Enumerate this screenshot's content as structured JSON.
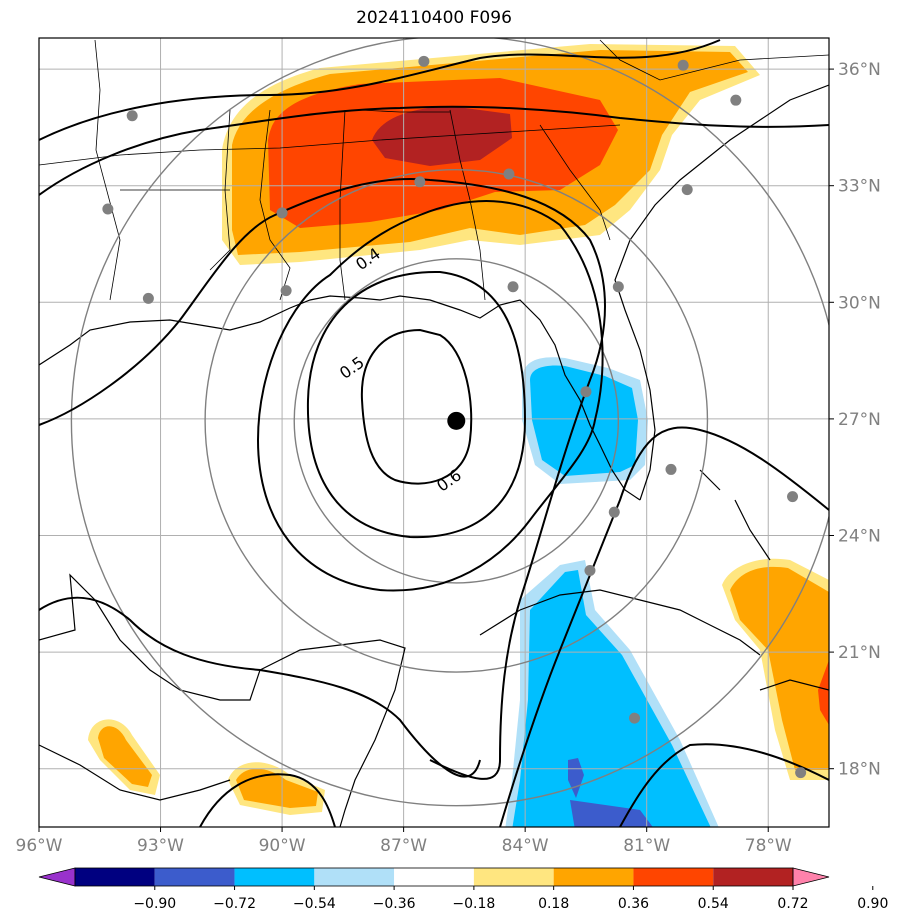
{
  "title": "2024110400 F096",
  "map": {
    "lon_range": [
      -96,
      -76.5
    ],
    "lat_range": [
      16.5,
      36.8
    ],
    "lon_ticks": [
      {
        "value": -96,
        "label": "96°W"
      },
      {
        "value": -93,
        "label": "93°W"
      },
      {
        "value": -90,
        "label": "90°W"
      },
      {
        "value": -87,
        "label": "87°W"
      },
      {
        "value": -84,
        "label": "84°W"
      },
      {
        "value": -81,
        "label": "81°W"
      },
      {
        "value": -78,
        "label": "78°W"
      }
    ],
    "lat_ticks": [
      {
        "value": 36,
        "label": "36°N"
      },
      {
        "value": 33,
        "label": "33°N"
      },
      {
        "value": 30,
        "label": "30°N"
      },
      {
        "value": 27,
        "label": "27°N"
      },
      {
        "value": 24,
        "label": "24°N"
      },
      {
        "value": 21,
        "label": "21°N"
      },
      {
        "value": 18,
        "label": "18°N"
      }
    ],
    "center_marker": {
      "lon": -85.7,
      "lat": 26.95
    },
    "range_rings_deg": [
      4,
      6.2,
      9.5
    ],
    "contour_labels": [
      {
        "text": "0.4",
        "lon": -87.8,
        "lat": 31.0
      },
      {
        "text": "0.5",
        "lon": -88.2,
        "lat": 28.2
      },
      {
        "text": "0.6",
        "lon": -85.8,
        "lat": 25.3
      }
    ],
    "stations": [
      [
        -86.5,
        36.2
      ],
      [
        -93.7,
        34.8
      ],
      [
        -94.3,
        32.4
      ],
      [
        -90.0,
        32.3
      ],
      [
        -86.6,
        33.1
      ],
      [
        -84.4,
        33.3
      ],
      [
        -80.1,
        36.1
      ],
      [
        -78.8,
        35.2
      ],
      [
        -80.0,
        32.9
      ],
      [
        -93.3,
        30.1
      ],
      [
        -89.9,
        30.3
      ],
      [
        -84.3,
        30.4
      ],
      [
        -81.7,
        30.4
      ],
      [
        -82.5,
        27.7
      ],
      [
        -80.4,
        25.7
      ],
      [
        -81.8,
        24.6
      ],
      [
        -77.4,
        25.0
      ],
      [
        -82.4,
        23.1
      ],
      [
        -81.3,
        19.3
      ],
      [
        -77.2,
        17.9
      ]
    ]
  },
  "colorbar": {
    "colors": [
      "#9932cc",
      "#000080",
      "#3c5ccc",
      "#00bfff",
      "#b0e0f8",
      "#ffffff",
      "#ffe680",
      "#ffa500",
      "#ff4500",
      "#b22222",
      "#ff82ab"
    ],
    "labels": [
      "−0.90",
      "−0.72",
      "−0.54",
      "−0.36",
      "−0.18",
      "0.18",
      "0.36",
      "0.54",
      "0.72",
      "0.90"
    ]
  }
}
